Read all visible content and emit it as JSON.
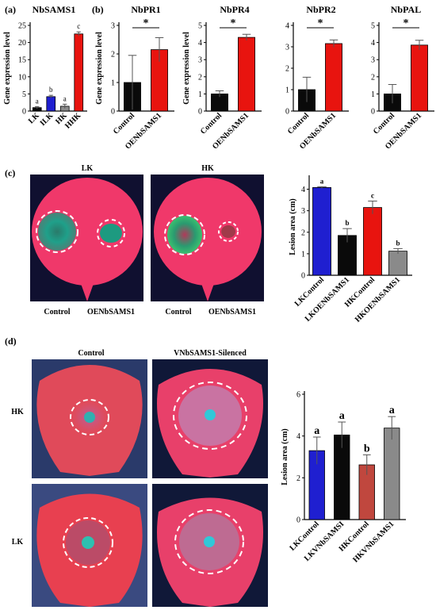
{
  "panels": {
    "a": "(a)",
    "b": "(b)",
    "c": "(c)",
    "d": "(d)"
  },
  "colors": {
    "blue": "#1f1fd0",
    "red": "#e8140f",
    "black": "#0a0a0a",
    "gray": "#8a8a8a",
    "brown_red": "#c0473e",
    "leaf_pink": "#f0386a",
    "photo_bg": "#101030"
  },
  "photos": {
    "c": {
      "top_labels": [
        "LK",
        "HK"
      ],
      "bottom_labels": [
        "Control",
        "OENbSAMS1",
        "Control",
        "OENbSAMS1"
      ]
    },
    "d": {
      "top_labels": [
        "Control",
        "VNbSAMS1-Silenced"
      ],
      "row_labels": [
        "HK",
        "LK"
      ]
    }
  },
  "chart_data": [
    {
      "id": "a",
      "type": "bar",
      "title": "NbSAMS1",
      "ylabel": "Gene expression level",
      "categories": [
        "LK",
        "ILK",
        "HK",
        "HHK"
      ],
      "values": [
        1.0,
        4.2,
        1.4,
        22.5
      ],
      "errors": [
        0.3,
        0.4,
        0.6,
        0.6
      ],
      "colors": [
        "#0a0a0a",
        "#1f1fd0",
        "#8a8a8a",
        "#e8140f"
      ],
      "letters": [
        "a",
        "b",
        "a",
        "c"
      ],
      "ylim": [
        0,
        25
      ],
      "yticks": [
        0,
        5,
        10,
        15,
        20,
        25
      ]
    },
    {
      "id": "b1",
      "type": "bar",
      "title": "NbPR1",
      "ylabel": "Gene expression level",
      "categories": [
        "Control",
        "OENbSAMS1"
      ],
      "values": [
        1.0,
        2.15
      ],
      "errors": [
        0.95,
        0.42
      ],
      "colors": [
        "#0a0a0a",
        "#e8140f"
      ],
      "significance": "*",
      "ylim": [
        0,
        3
      ],
      "yticks": [
        0,
        1,
        2,
        3
      ]
    },
    {
      "id": "b2",
      "type": "bar",
      "title": "NbPR4",
      "ylabel": "Gene expression level",
      "categories": [
        "Control",
        "OENbSAMS1"
      ],
      "values": [
        1.0,
        4.3
      ],
      "errors": [
        0.18,
        0.18
      ],
      "colors": [
        "#0a0a0a",
        "#e8140f"
      ],
      "significance": "*",
      "ylim": [
        0,
        5
      ],
      "yticks": [
        0,
        1,
        2,
        3,
        4,
        5
      ]
    },
    {
      "id": "b3",
      "type": "bar",
      "title": "NbPR2",
      "ylabel": "",
      "categories": [
        "Control",
        "OENbSAMS1"
      ],
      "values": [
        1.0,
        3.15
      ],
      "errors": [
        0.58,
        0.17
      ],
      "colors": [
        "#0a0a0a",
        "#e8140f"
      ],
      "significance": "*",
      "ylim": [
        0,
        4
      ],
      "yticks": [
        0,
        1,
        2,
        3,
        4
      ]
    },
    {
      "id": "b4",
      "type": "bar",
      "title": "NbPAL",
      "ylabel": "",
      "categories": [
        "Control",
        "OENbSAMS1"
      ],
      "values": [
        1.0,
        3.85
      ],
      "errors": [
        0.55,
        0.28
      ],
      "colors": [
        "#0a0a0a",
        "#e8140f"
      ],
      "significance": "*",
      "ylim": [
        0,
        5
      ],
      "yticks": [
        0,
        1,
        2,
        3,
        4,
        5
      ]
    },
    {
      "id": "c",
      "type": "bar",
      "title": "",
      "ylabel": "Lesion area (cm)",
      "categories": [
        "LKControl",
        "LKOENbSAMS1",
        "HKControl",
        "HKOENbSAMS1"
      ],
      "values": [
        4.08,
        1.85,
        3.15,
        1.12
      ],
      "errors": [
        0.04,
        0.32,
        0.3,
        0.12
      ],
      "colors": [
        "#1f1fd0",
        "#0a0a0a",
        "#e8140f",
        "#8a8a8a"
      ],
      "letters": [
        "a",
        "b",
        "c",
        "b"
      ],
      "ylim": [
        0,
        4.5
      ],
      "yticks": [
        0,
        1,
        2,
        3,
        4
      ]
    },
    {
      "id": "d",
      "type": "bar",
      "title": "",
      "ylabel": "Lesion area (cm)",
      "categories": [
        "LKControl",
        "LKVNbSAMSI",
        "HKControl",
        "HKVNbSAMS1"
      ],
      "values": [
        3.3,
        4.05,
        2.62,
        4.38
      ],
      "errors": [
        0.65,
        0.62,
        0.48,
        0.55
      ],
      "colors": [
        "#1f1fd0",
        "#0a0a0a",
        "#c0473e",
        "#8a8a8a"
      ],
      "letters": [
        "a",
        "a",
        "b",
        "a"
      ],
      "ylim": [
        0,
        6
      ],
      "yticks": [
        0,
        2,
        4,
        6
      ]
    }
  ]
}
